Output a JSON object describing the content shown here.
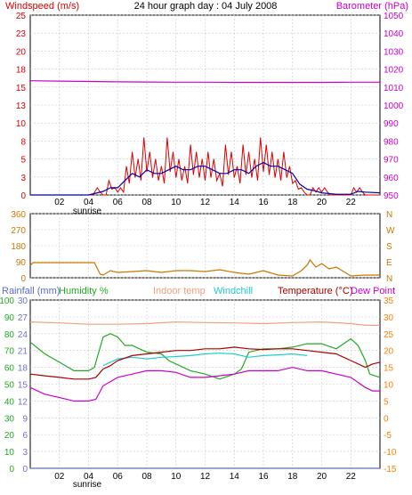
{
  "title": "24 hour graph day : 04 July 2008",
  "colors": {
    "windspeed": "#dd0000",
    "wind_avg": "#0000aa",
    "barometer": "#cc00cc",
    "wind_dir": "#cc7700",
    "rainfall": "#5a6bd6",
    "humidity": "#22aa22",
    "indoor_temp": "#f0a080",
    "windchill": "#22cccc",
    "temperature": "#aa0000",
    "dew_point": "#cc00cc",
    "axis_left_purple": "#7070d0",
    "axis_right_orange": "#ff8000"
  },
  "x_ticks": [
    "02",
    "04",
    "06",
    "08",
    "10",
    "12",
    "14",
    "16",
    "18",
    "20",
    "22"
  ],
  "sunrise_label": "sunrise",
  "chart_data": [
    {
      "type": "line",
      "panel": "wind-barometer",
      "title": "24 hour graph day : 04 July 2008",
      "left_label": "Windspeed (m/s)",
      "right_label": "Barometer (hPa)",
      "left_ticks": [
        "0",
        "3",
        "5",
        "8",
        "10",
        "13",
        "15",
        "18",
        "20",
        "23",
        "25"
      ],
      "right_ticks": [
        "950",
        "960",
        "970",
        "980",
        "990",
        "1000",
        "1010",
        "1020",
        "1030",
        "1040",
        "1050"
      ],
      "ylim_left": [
        0,
        25
      ],
      "ylim_right": [
        950,
        1050
      ],
      "xlim_hours": [
        0,
        24
      ],
      "series": [
        {
          "name": "Windspeed (m/s)",
          "x": [
            0,
            4,
            4.6,
            5,
            5.4,
            5.8,
            6.2,
            6.6,
            7,
            7.4,
            7.8,
            8.2,
            8.6,
            9,
            9.4,
            9.8,
            10.2,
            10.6,
            11,
            11.4,
            11.8,
            12.2,
            12.6,
            13,
            13.4,
            13.8,
            14.2,
            14.6,
            15,
            15.4,
            15.8,
            16.2,
            16.6,
            17,
            17.4,
            17.8,
            18.2,
            18.6,
            19,
            19.4,
            19.8,
            20.2,
            20.6,
            21,
            21.4,
            21.8,
            22.2,
            22.6,
            23,
            23.4,
            24
          ],
          "y": [
            0,
            0,
            1,
            0,
            2,
            1,
            1,
            4,
            6,
            5,
            8,
            6,
            5,
            4,
            8,
            6,
            5,
            4,
            7,
            6,
            5,
            6,
            5,
            3,
            7,
            6,
            4,
            7,
            6,
            5,
            8,
            7,
            6,
            5,
            6,
            4,
            2,
            1,
            0,
            1,
            1,
            1,
            0,
            0,
            0,
            0,
            1,
            1,
            0,
            0,
            0
          ]
        },
        {
          "name": "Wind average",
          "x": [
            0,
            4,
            5,
            5.5,
            6,
            6.5,
            7,
            7.5,
            8,
            8.5,
            9,
            9.5,
            10,
            10.5,
            11,
            11.5,
            12,
            12.5,
            13,
            13.5,
            14,
            14.5,
            15,
            15.5,
            16,
            16.5,
            17,
            17.5,
            18,
            18.5,
            19,
            19.5,
            20,
            21,
            22,
            22.5,
            23,
            24
          ],
          "y": [
            0,
            0,
            0.5,
            1,
            1,
            2,
            3,
            2.5,
            3.5,
            3,
            3,
            3.5,
            4,
            3.5,
            3.5,
            4,
            4,
            3.5,
            3,
            3,
            3.5,
            3.5,
            3,
            4,
            4.5,
            4,
            4,
            3.5,
            3,
            1.5,
            0.8,
            0.6,
            0.3,
            0.1,
            0.1,
            0.5,
            0.4,
            0.3
          ]
        },
        {
          "name": "Barometer (hPa)",
          "x": [
            0,
            2,
            4,
            6,
            8,
            10,
            12,
            14,
            16,
            18,
            20,
            22,
            24
          ],
          "y": [
            1013.5,
            1013.3,
            1013.1,
            1012.9,
            1012.8,
            1012.7,
            1012.7,
            1012.6,
            1012.6,
            1012.6,
            1012.6,
            1012.7,
            1012.7
          ]
        }
      ]
    },
    {
      "type": "line",
      "panel": "wind-direction",
      "left_ticks": [
        "0",
        "90",
        "180",
        "270",
        "360"
      ],
      "right_ticks": [
        "N",
        "E",
        "S",
        "W",
        "N"
      ],
      "ylim_left": [
        0,
        360
      ],
      "xlim_hours": [
        0,
        24
      ],
      "series": [
        {
          "name": "Wind direction (°)",
          "x": [
            0,
            0.2,
            1,
            2,
            3,
            4,
            4.4,
            4.8,
            5,
            5.5,
            6,
            7,
            8,
            9,
            10,
            11,
            12,
            13,
            14,
            15,
            16,
            17,
            18,
            18.6,
            19,
            19.2,
            19.6,
            20,
            20.5,
            21,
            22,
            23,
            24
          ],
          "y": [
            70,
            85,
            85,
            85,
            85,
            85,
            85,
            20,
            15,
            40,
            30,
            35,
            40,
            30,
            40,
            40,
            35,
            45,
            30,
            20,
            40,
            15,
            10,
            40,
            70,
            100,
            60,
            80,
            50,
            60,
            10,
            15,
            15
          ]
        }
      ]
    },
    {
      "type": "line",
      "panel": "temperature-humidity",
      "labels": {
        "rainfall": "Rainfall (mm)",
        "humidity": "Humidity %",
        "indoor_temp": "Indoor temp",
        "windchill": "Windchill",
        "temperature": "Temperature (°C)",
        "dew_point": "Dew Point"
      },
      "left_ticks_humidity": [
        "0",
        "10",
        "20",
        "30",
        "40",
        "50",
        "60",
        "70",
        "80",
        "90",
        "100"
      ],
      "left_ticks_rain": [
        "0",
        "3",
        "6",
        "9",
        "12",
        "15",
        "18",
        "21",
        "24",
        "27",
        "30"
      ],
      "right_ticks_temp": [
        "-15",
        "-10",
        "-5",
        "0",
        "5",
        "10",
        "15",
        "20",
        "25",
        "30",
        "35"
      ],
      "ylim_humidity": [
        0,
        100
      ],
      "ylim_rain": [
        0,
        30
      ],
      "ylim_temp": [
        -15,
        35
      ],
      "xlim_hours": [
        0,
        24
      ],
      "series": [
        {
          "name": "Humidity %",
          "x": [
            0,
            1,
            2,
            3,
            4,
            4.4,
            5,
            5.5,
            6,
            6.5,
            7,
            7.5,
            8,
            9,
            9.5,
            10,
            11,
            12,
            13,
            14,
            14.5,
            15,
            16,
            17,
            18,
            19,
            20,
            21,
            22,
            22.5,
            23,
            23.3,
            24
          ],
          "y": [
            75,
            68,
            63,
            58,
            58,
            60,
            78,
            80,
            78,
            73,
            73,
            71,
            69,
            68,
            64,
            62,
            58,
            56,
            53,
            56,
            59,
            69,
            71,
            71,
            72,
            74,
            74,
            71,
            77,
            73,
            64,
            56,
            54
          ]
        },
        {
          "name": "Indoor temp",
          "x": [
            0,
            2,
            4,
            6,
            8,
            10,
            12,
            14,
            16,
            18,
            20,
            22,
            23,
            24
          ],
          "y": [
            28.5,
            28.2,
            27.8,
            27.8,
            28,
            28.5,
            28.3,
            28.2,
            28,
            28.3,
            28.5,
            28,
            27.5,
            27.5
          ]
        },
        {
          "name": "Windchill",
          "x": [
            5,
            6,
            7,
            8,
            9,
            10,
            11,
            12,
            13,
            14,
            15,
            16,
            17,
            18,
            19
          ],
          "y": [
            15.5,
            17.5,
            18,
            17.5,
            18,
            18.2,
            18.5,
            19,
            19.2,
            19,
            18,
            18.5,
            18.7,
            19,
            18.5
          ]
        },
        {
          "name": "Temperature (°C)",
          "x": [
            0,
            1,
            2,
            3,
            4,
            4.5,
            5,
            5.5,
            6,
            7,
            8,
            9,
            10,
            11,
            12,
            13,
            14,
            15,
            16,
            17,
            18,
            19,
            20,
            21,
            22,
            23,
            23.5,
            24
          ],
          "y": [
            13,
            12.5,
            12,
            11.5,
            11.5,
            12,
            14.5,
            15.5,
            17,
            18.5,
            19,
            19.5,
            20,
            20,
            20.5,
            20.5,
            21,
            20.5,
            20.3,
            20.5,
            20.5,
            20,
            19.5,
            19,
            17,
            15,
            16,
            16.5
          ]
        },
        {
          "name": "Dew Point",
          "x": [
            0,
            1,
            2,
            3,
            4,
            4.5,
            5,
            6,
            7,
            8,
            9,
            10,
            11,
            12,
            13,
            14,
            15,
            16,
            17,
            18,
            19,
            20,
            21,
            22,
            23,
            23.5,
            24
          ],
          "y": [
            9,
            7,
            6,
            5,
            5,
            5.5,
            9.5,
            12,
            13,
            14,
            14,
            13.5,
            12,
            12,
            12.5,
            13,
            14,
            14,
            14,
            15,
            14,
            14,
            13,
            12,
            9,
            8,
            8
          ]
        },
        {
          "name": "Rainfall (mm)",
          "x": [
            0,
            24
          ],
          "y": [
            0,
            0
          ]
        }
      ]
    }
  ]
}
